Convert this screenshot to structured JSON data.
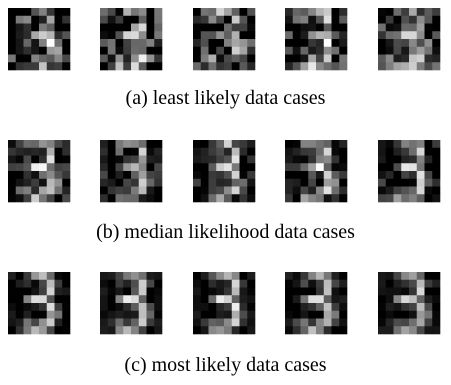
{
  "panels": [
    {
      "caption": "(a) least likely data cases"
    },
    {
      "caption": "(b) median likelihood data cases"
    },
    {
      "caption": "(c) most likely data cases"
    }
  ]
}
